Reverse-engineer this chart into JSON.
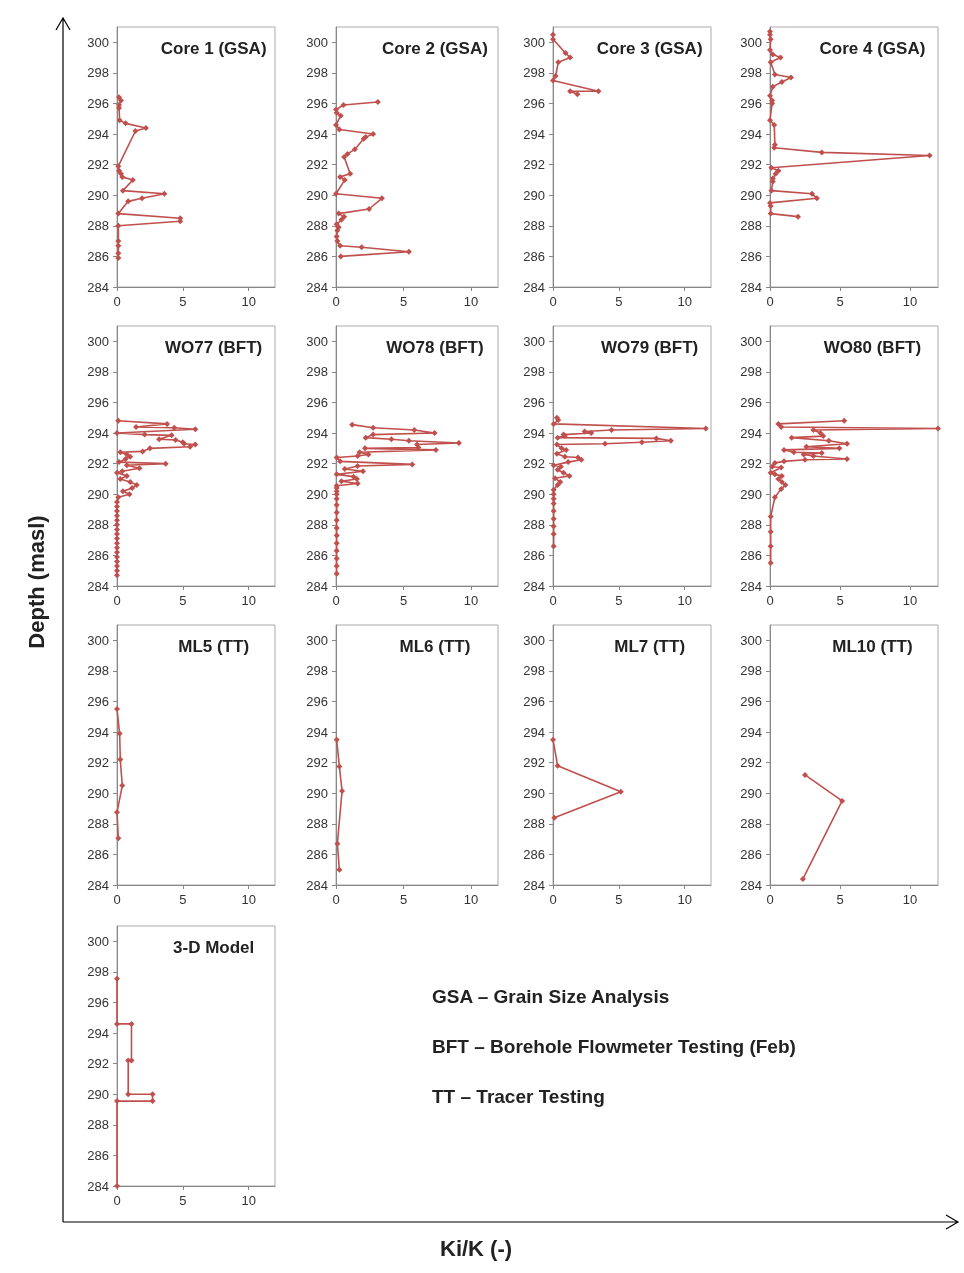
{
  "chart_data": [
    {
      "type": "line",
      "title": "Core 1 (GSA)",
      "color": "#c0504d",
      "marker": "diamond",
      "xlim": [
        0,
        12
      ],
      "xticks": [
        0,
        5,
        10
      ],
      "ylim": [
        284,
        301
      ],
      "yticks": [
        284,
        286,
        288,
        290,
        292,
        294,
        296,
        298,
        300
      ],
      "x": [
        0.15,
        0.3,
        0.15,
        0.15,
        0.2,
        0.65,
        2.2,
        1.4,
        0.1,
        0.15,
        0.3,
        0.4,
        1.2,
        0.45,
        3.6,
        1.9,
        0.85,
        0.1,
        4.8,
        4.8,
        0.1,
        0.1,
        0.1,
        0.1,
        0.1
      ],
      "values": [
        296.4,
        296.2,
        295.9,
        295.7,
        294.9,
        294.7,
        294.4,
        294.2,
        291.9,
        291.6,
        291.4,
        291.2,
        291.0,
        290.3,
        290.1,
        289.8,
        289.6,
        288.8,
        288.5,
        288.3,
        288.0,
        287.0,
        286.7,
        286.2,
        285.9
      ]
    },
    {
      "type": "line",
      "title": "Core 2 (GSA)",
      "color": "#c0504d",
      "marker": "diamond",
      "xlim": [
        0,
        12
      ],
      "xticks": [
        0,
        5,
        10
      ],
      "ylim": [
        284,
        301
      ],
      "yticks": [
        284,
        286,
        288,
        290,
        292,
        294,
        296,
        298,
        300
      ],
      "x": [
        3.1,
        0.55,
        0,
        0.05,
        0.35,
        0,
        0.25,
        2.75,
        2.2,
        2.05,
        1.4,
        0.85,
        0.6,
        1.05,
        0.3,
        0.65,
        0,
        3.4,
        2.45,
        0.2,
        0.6,
        0.4,
        0.05,
        0.2,
        0.1,
        0.05,
        0.1,
        0.3,
        1.9,
        5.4,
        0.35
      ],
      "values": [
        296.1,
        295.9,
        295.6,
        295.4,
        295.2,
        294.6,
        294.3,
        294.0,
        293.8,
        293.7,
        293.0,
        292.7,
        292.5,
        291.4,
        291.2,
        291.0,
        290.1,
        289.8,
        289.1,
        288.8,
        288.6,
        288.4,
        288.1,
        287.9,
        287.7,
        287.3,
        287.0,
        286.7,
        286.6,
        286.3,
        286.0
      ]
    },
    {
      "type": "line",
      "title": "Core 3 (GSA)",
      "color": "#c0504d",
      "marker": "diamond",
      "xlim": [
        0,
        12
      ],
      "xticks": [
        0,
        5,
        10
      ],
      "ylim": [
        284,
        301
      ],
      "yticks": [
        284,
        286,
        288,
        290,
        292,
        294,
        296,
        298,
        300
      ],
      "x": [
        0,
        0,
        0.95,
        1.3,
        0.4,
        0.2,
        0,
        3.45,
        1.3,
        1.85
      ],
      "values": [
        300.5,
        300.2,
        299.3,
        299.0,
        298.7,
        297.8,
        297.5,
        296.8,
        296.8,
        296.6
      ]
    },
    {
      "type": "line",
      "title": "Core 4 (GSA)",
      "color": "#c0504d",
      "marker": "diamond",
      "xlim": [
        0,
        12
      ],
      "xticks": [
        0,
        5,
        10
      ],
      "ylim": [
        284,
        301
      ],
      "yticks": [
        284,
        286,
        288,
        290,
        292,
        294,
        296,
        298,
        300
      ],
      "x": [
        0,
        0,
        0.05,
        0,
        0.2,
        0.75,
        0.05,
        0.35,
        1.5,
        0.85,
        0.2,
        0,
        0.15,
        0.15,
        0,
        0.3,
        0.35,
        0.3,
        3.7,
        11.4,
        0.1,
        0.6,
        0.4,
        0.2,
        0.2,
        0.1,
        3.0,
        3.35,
        0,
        0.05,
        0.05,
        2.0
      ],
      "values": [
        300.7,
        300.5,
        300.2,
        299.5,
        299.2,
        299.0,
        298.7,
        297.9,
        297.7,
        297.4,
        297.1,
        296.5,
        296.2,
        296.0,
        294.9,
        294.6,
        293.3,
        293.1,
        292.8,
        292.6,
        291.8,
        291.6,
        291.4,
        291.1,
        290.9,
        290.3,
        290.1,
        289.8,
        289.5,
        289.3,
        288.8,
        288.6
      ]
    },
    {
      "type": "line",
      "title": "WO77 (BFT)",
      "color": "#c0504d",
      "marker": "diamond",
      "xlim": [
        0,
        12
      ],
      "xticks": [
        0,
        5,
        10
      ],
      "ylim": [
        284,
        301
      ],
      "yticks": [
        284,
        286,
        288,
        290,
        292,
        294,
        296,
        298,
        300
      ],
      "x": [
        0.1,
        3.8,
        1.45,
        4.35,
        5.95,
        0,
        2.1,
        4.15,
        3.2,
        4.45,
        5.0,
        5.1,
        5.95,
        5.55,
        2.5,
        1.95,
        0.25,
        0.75,
        1.0,
        0.65,
        0.15,
        3.7,
        0.75,
        1.7,
        0.4,
        0,
        0.75,
        0.25,
        1.0,
        1.5,
        1.15,
        0.45,
        0.95,
        0.1,
        0,
        0,
        0,
        0,
        0,
        0,
        0,
        0,
        0,
        0,
        0,
        0,
        0,
        0,
        0,
        0,
        0
      ],
      "values": [
        294.8,
        294.6,
        294.4,
        294.35,
        294.25,
        294.0,
        293.9,
        293.85,
        293.6,
        293.55,
        293.4,
        293.3,
        293.25,
        293.1,
        293.0,
        292.8,
        292.75,
        292.6,
        292.45,
        292.3,
        292.1,
        292.0,
        291.9,
        291.7,
        291.5,
        291.4,
        291.2,
        291.0,
        290.8,
        290.6,
        290.4,
        290.2,
        290.0,
        289.8,
        289.5,
        289.2,
        288.9,
        288.6,
        288.3,
        288.0,
        287.7,
        287.4,
        287.1,
        286.8,
        286.5,
        286.2,
        285.9,
        285.6,
        285.3,
        285.0,
        284.7
      ]
    },
    {
      "type": "line",
      "title": "WO78 (BFT)",
      "color": "#c0504d",
      "marker": "diamond",
      "xlim": [
        0,
        12
      ],
      "xticks": [
        0,
        5,
        10
      ],
      "ylim": [
        284,
        301
      ],
      "yticks": [
        284,
        286,
        288,
        290,
        292,
        294,
        296,
        298,
        300
      ],
      "x": [
        1.2,
        2.75,
        5.8,
        7.3,
        2.75,
        2.2,
        4.1,
        5.4,
        9.1,
        6.0,
        6.1,
        2.15,
        7.4,
        1.75,
        2.4,
        1.6,
        0.05,
        0.3,
        5.65,
        1.6,
        0.65,
        2.0,
        0.05,
        1.3,
        1.55,
        0.4,
        1.6,
        0.05,
        0.05,
        0.05,
        0.05,
        0.05,
        0.05,
        0.05,
        0.05,
        0.05,
        0.05,
        0.05,
        0.05,
        0.05,
        0.05,
        0.05
      ],
      "values": [
        294.55,
        294.35,
        294.2,
        294.0,
        293.9,
        293.7,
        293.6,
        293.5,
        293.35,
        293.25,
        293.05,
        293.0,
        292.9,
        292.75,
        292.6,
        292.5,
        292.4,
        292.15,
        291.95,
        291.85,
        291.65,
        291.5,
        291.3,
        291.15,
        291.0,
        290.85,
        290.7,
        290.55,
        290.4,
        290.2,
        290.0,
        289.7,
        289.3,
        288.8,
        288.3,
        287.8,
        287.3,
        286.8,
        286.3,
        285.8,
        285.3,
        284.8
      ]
    },
    {
      "type": "line",
      "title": "WO79 (BFT)",
      "color": "#c0504d",
      "marker": "diamond",
      "xlim": [
        0,
        12
      ],
      "xticks": [
        0,
        5,
        10
      ],
      "ylim": [
        284,
        301
      ],
      "yticks": [
        284,
        286,
        288,
        290,
        292,
        294,
        296,
        298,
        300
      ],
      "x": [
        0.3,
        0.4,
        0.05,
        11.6,
        4.45,
        2.4,
        2.9,
        0.8,
        0.9,
        0.35,
        7.85,
        8.95,
        6.75,
        3.95,
        0.3,
        0.65,
        1.0,
        0.3,
        0.9,
        1.9,
        2.15,
        1.15,
        0.05,
        0.6,
        0.35,
        0.8,
        1.25,
        0.15,
        0.55,
        0.35,
        0.05,
        0.05,
        0.05,
        0.05,
        0.05,
        0.05,
        0.05,
        0.05,
        0.05
      ],
      "values": [
        295.0,
        294.85,
        294.6,
        294.3,
        294.2,
        294.1,
        294.0,
        293.9,
        293.8,
        293.7,
        293.65,
        293.5,
        293.4,
        293.3,
        293.25,
        293.0,
        292.9,
        292.65,
        292.45,
        292.4,
        292.25,
        292.1,
        291.9,
        291.8,
        291.6,
        291.4,
        291.2,
        291.05,
        290.8,
        290.6,
        290.3,
        290.0,
        289.7,
        289.4,
        288.9,
        288.4,
        287.9,
        287.4,
        286.6
      ]
    },
    {
      "type": "line",
      "title": "WO80 (BFT)",
      "color": "#c0504d",
      "marker": "diamond",
      "xlim": [
        0,
        12
      ],
      "xticks": [
        0,
        5,
        10
      ],
      "ylim": [
        284,
        301
      ],
      "yticks": [
        284,
        286,
        288,
        290,
        292,
        294,
        296,
        298,
        300
      ],
      "x": [
        5.3,
        0.6,
        0.8,
        12,
        3.1,
        3.6,
        3.8,
        1.55,
        4.2,
        5.5,
        2.6,
        4.95,
        1.0,
        1.7,
        3.7,
        2.4,
        3.1,
        5.5,
        2.5,
        1.0,
        0.35,
        0.15,
        0.8,
        0.05,
        0.35,
        0.85,
        0.6,
        0.85,
        1.1,
        0.8,
        0.35,
        0.05,
        0.05,
        0.05,
        0.05
      ],
      "values": [
        294.8,
        294.6,
        294.4,
        294.3,
        294.2,
        294.0,
        293.8,
        293.7,
        293.5,
        293.3,
        293.1,
        293.0,
        292.9,
        292.75,
        292.7,
        292.6,
        292.5,
        292.3,
        292.25,
        292.15,
        292.05,
        291.8,
        291.75,
        291.4,
        291.3,
        291.2,
        291.0,
        290.8,
        290.6,
        290.35,
        289.8,
        288.55,
        287.55,
        286.6,
        285.5
      ]
    },
    {
      "type": "line",
      "title": "ML5 (TT)",
      "color": "#c0504d",
      "marker": "diamond",
      "xlim": [
        0,
        12
      ],
      "xticks": [
        0,
        5,
        10
      ],
      "ylim": [
        284,
        301
      ],
      "yticks": [
        284,
        286,
        288,
        290,
        292,
        294,
        296,
        298,
        300
      ],
      "x": [
        0,
        0.2,
        0.25,
        0.4,
        0,
        0.1
      ],
      "values": [
        295.5,
        293.9,
        292.2,
        290.5,
        288.75,
        287.05
      ]
    },
    {
      "type": "line",
      "title": "ML6 (TT)",
      "color": "#c0504d",
      "marker": "diamond",
      "xlim": [
        0,
        12
      ],
      "xticks": [
        0,
        5,
        10
      ],
      "ylim": [
        284,
        301
      ],
      "yticks": [
        284,
        286,
        288,
        290,
        292,
        294,
        296,
        298,
        300
      ],
      "x": [
        0.05,
        0.25,
        0.45,
        0.1,
        0.25
      ],
      "values": [
        293.5,
        291.75,
        290.15,
        286.7,
        285.0
      ]
    },
    {
      "type": "line",
      "title": "ML7 (TT)",
      "color": "#c0504d",
      "marker": "diamond",
      "xlim": [
        0,
        12
      ],
      "xticks": [
        0,
        5,
        10
      ],
      "ylim": [
        284,
        301
      ],
      "yticks": [
        284,
        286,
        288,
        290,
        292,
        294,
        296,
        298,
        300
      ],
      "x": [
        0,
        0.35,
        5.15,
        0.1
      ],
      "values": [
        293.5,
        291.8,
        290.1,
        288.4
      ]
    },
    {
      "type": "line",
      "title": "ML10 (TT)",
      "color": "#c0504d",
      "marker": "diamond",
      "xlim": [
        0,
        12
      ],
      "xticks": [
        0,
        5,
        10
      ],
      "ylim": [
        284,
        301
      ],
      "yticks": [
        284,
        286,
        288,
        290,
        292,
        294,
        296,
        298,
        300
      ],
      "x": [
        2.5,
        5.15,
        2.35
      ],
      "values": [
        291.2,
        289.5,
        284.4
      ]
    },
    {
      "type": "line",
      "title": "3-D Model",
      "color": "#c0504d",
      "marker": "diamond",
      "xlim": [
        0,
        12
      ],
      "xticks": [
        0,
        5,
        10
      ],
      "ylim": [
        284,
        301
      ],
      "yticks": [
        284,
        286,
        288,
        290,
        292,
        294,
        296,
        298,
        300
      ],
      "x": [
        0,
        0,
        1.1,
        1.1,
        0.85,
        0.85,
        2.7,
        2.7,
        0,
        0
      ],
      "values": [
        297.55,
        294.6,
        294.6,
        292.2,
        292.2,
        290.0,
        290.0,
        289.55,
        289.55,
        284.0
      ]
    },
    {
      "type": "other",
      "xlabel": "Ki/K (-)",
      "ylabel": "Depth (masl)",
      "annotations": [
        "GSA – Grain Size Analysis",
        "BFT – Borehole Flowmeter Testing (Feb)",
        "TT – Tracer Testing"
      ]
    }
  ]
}
